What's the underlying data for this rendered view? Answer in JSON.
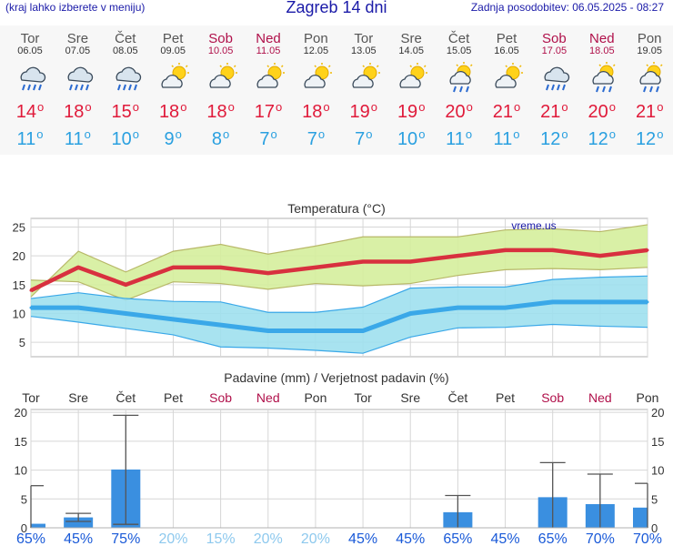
{
  "header": {
    "left": "(kraj lahko izberete v meniju)",
    "title": "Zagreb 14 dni",
    "right": "Zadnja posodobitev: 06.05.2025 - 08:27"
  },
  "colors": {
    "header_text": "#1a1aa8",
    "max_temp": "#e01a3a",
    "min_temp": "#2aa0e0",
    "weekend": "#b0104a",
    "bar": "#3a8fe0",
    "precip_prob_high": "#1a5ad8",
    "precip_prob_low": "#8ec9ee"
  },
  "days": [
    {
      "name": "Tor",
      "date": "06.05",
      "icon": "rain-cloud-icon",
      "max": "14",
      "min": "11",
      "weekend": false
    },
    {
      "name": "Sre",
      "date": "07.05",
      "icon": "rain-cloud-icon",
      "max": "18",
      "min": "11",
      "weekend": false
    },
    {
      "name": "Čet",
      "date": "08.05",
      "icon": "rain-cloud-icon",
      "max": "15",
      "min": "10",
      "weekend": false
    },
    {
      "name": "Pet",
      "date": "09.05",
      "icon": "partly-cloudy-icon",
      "max": "18",
      "min": "9",
      "weekend": false
    },
    {
      "name": "Sob",
      "date": "10.05",
      "icon": "partly-cloudy-icon",
      "max": "18",
      "min": "8",
      "weekend": true
    },
    {
      "name": "Ned",
      "date": "11.05",
      "icon": "partly-cloudy-icon",
      "max": "17",
      "min": "7",
      "weekend": true
    },
    {
      "name": "Pon",
      "date": "12.05",
      "icon": "partly-cloudy-icon",
      "max": "18",
      "min": "7",
      "weekend": false
    },
    {
      "name": "Tor",
      "date": "13.05",
      "icon": "partly-cloudy-icon",
      "max": "19",
      "min": "7",
      "weekend": false
    },
    {
      "name": "Sre",
      "date": "14.05",
      "icon": "partly-cloudy-icon",
      "max": "19",
      "min": "10",
      "weekend": false
    },
    {
      "name": "Čet",
      "date": "15.05",
      "icon": "sun-cloud-rain-icon",
      "max": "20",
      "min": "11",
      "weekend": false
    },
    {
      "name": "Pet",
      "date": "16.05",
      "icon": "partly-cloudy-icon",
      "max": "21",
      "min": "11",
      "weekend": false
    },
    {
      "name": "Sob",
      "date": "17.05",
      "icon": "rain-cloud-icon",
      "max": "21",
      "min": "12",
      "weekend": true
    },
    {
      "name": "Ned",
      "date": "18.05",
      "icon": "sun-cloud-rain-icon",
      "max": "20",
      "min": "12",
      "weekend": true
    },
    {
      "name": "Pon",
      "date": "19.05",
      "icon": "sun-cloud-rain-icon",
      "max": "21",
      "min": "12",
      "weekend": false
    }
  ],
  "chart_data": [
    {
      "type": "line",
      "title": "Temperatura (°C)",
      "watermark": "vreme.us",
      "x": [
        "06.05",
        "07.05",
        "08.05",
        "09.05",
        "10.05",
        "11.05",
        "12.05",
        "13.05",
        "14.05",
        "15.05",
        "16.05",
        "17.05",
        "18.05",
        "19.05"
      ],
      "ylim": [
        2.5,
        26.5
      ],
      "yticks": [
        5,
        10,
        15,
        20,
        25
      ],
      "series": [
        {
          "role": "max",
          "values": [
            14,
            18,
            15,
            18,
            18,
            17,
            18,
            19,
            19,
            20,
            21,
            21,
            20,
            21
          ],
          "band_low": [
            15.8,
            15.5,
            12.3,
            15.5,
            15.2,
            14.2,
            15.2,
            14.8,
            15.2,
            16.6,
            17.6,
            17.8,
            17.6,
            18.0
          ],
          "band_high": [
            12.9,
            20.8,
            17.2,
            20.8,
            22.0,
            20.3,
            21.7,
            23.3,
            23.3,
            23.3,
            24.5,
            24.7,
            24.2,
            25.4
          ]
        },
        {
          "role": "min",
          "values": [
            11,
            11,
            10,
            9,
            8,
            7,
            7,
            7,
            10,
            11,
            11,
            12,
            12,
            12
          ],
          "band_low": [
            9.5,
            8.5,
            7.4,
            6.3,
            4.2,
            4.0,
            3.6,
            3.1,
            5.9,
            7.5,
            7.6,
            8.1,
            7.8,
            7.6
          ],
          "band_high": [
            12.6,
            13.6,
            12.6,
            12.1,
            12.0,
            10.2,
            10.2,
            11.1,
            14.4,
            14.6,
            14.6,
            15.9,
            16.3,
            16.5
          ]
        }
      ],
      "grid": true
    },
    {
      "type": "bar",
      "title": "Padavine (mm) / Verjetnost padavin (%)",
      "categories": [
        "Tor",
        "Sre",
        "Čet",
        "Pet",
        "Sob",
        "Ned",
        "Pon",
        "Tor",
        "Sre",
        "Čet",
        "Pet",
        "Sob",
        "Ned",
        "Pon"
      ],
      "weekend": [
        false,
        false,
        false,
        false,
        true,
        true,
        false,
        false,
        false,
        false,
        false,
        true,
        true,
        false
      ],
      "values": [
        0.7,
        1.8,
        10.1,
        0,
        0,
        0,
        0,
        0,
        0,
        2.7,
        0,
        5.3,
        4.1,
        3.5
      ],
      "error_high": [
        7.3,
        2.5,
        19.5,
        0,
        0,
        0,
        0,
        0,
        0,
        5.6,
        0,
        11.3,
        9.3,
        7.7
      ],
      "error_low": [
        0,
        1.1,
        0.6,
        0,
        0,
        0,
        0,
        0,
        0,
        0,
        0,
        0,
        0,
        0
      ],
      "probability": [
        "65%",
        "45%",
        "75%",
        "20%",
        "15%",
        "20%",
        "20%",
        "45%",
        "45%",
        "65%",
        "45%",
        "65%",
        "70%",
        "70%"
      ],
      "probability_level": [
        "high",
        "high",
        "high",
        "low",
        "low",
        "low",
        "low",
        "high",
        "high",
        "high",
        "high",
        "high",
        "high",
        "high"
      ],
      "ylim": [
        0,
        20.5
      ],
      "yticks": [
        0,
        5,
        10,
        15,
        20
      ],
      "grid": true
    }
  ]
}
